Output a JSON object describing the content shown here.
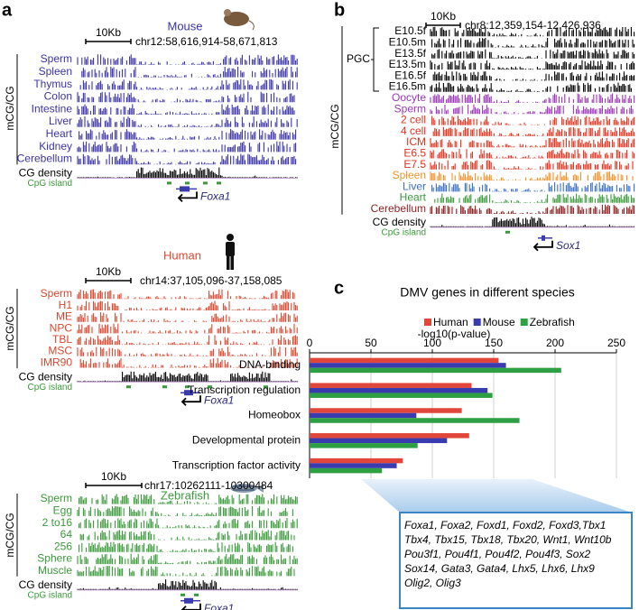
{
  "panel_a": {
    "letter": "a",
    "sections": [
      {
        "species": "Mouse",
        "scale": "10Kb",
        "locus": "chr12:58,616,914-58,671,813",
        "y_label": "mCG/CG",
        "color": "#3b33a6",
        "tracks": [
          "Sperm",
          "Spleen",
          "Thymus",
          "Colon",
          "Intestine",
          "Liver",
          "Heart",
          "Kidney",
          "Cerebellum"
        ],
        "density_label": "CG density",
        "cpg_label": "CpG island",
        "gene": "Foxa1"
      },
      {
        "species": "Human",
        "scale": "10Kb",
        "locus": "chr14:37,105,096-37,158,085",
        "y_label": "mCG/CG",
        "color": "#d9472f",
        "tracks": [
          "Sperm",
          "H1",
          "ME",
          "NPC",
          "TBL",
          "MSC",
          "IMR90"
        ],
        "density_label": "CG density",
        "cpg_label": "CpG island",
        "gene": "Foxa1"
      },
      {
        "species": "Zebrafish",
        "scale": "10Kb",
        "locus": "chr17:10262111-10300484",
        "y_label": "mCG/CG",
        "color": "#3a9a3a",
        "tracks": [
          "Sperm",
          "Egg",
          "2 to16",
          "64",
          "256",
          "Sphere",
          "Muscle"
        ],
        "density_label": "CG density",
        "cpg_label": "CpG island",
        "gene": "Foxa1"
      }
    ]
  },
  "panel_b": {
    "letter": "b",
    "scale": "10Kb",
    "locus": "chr8:12,359,154-12,426,936",
    "y_label": "mCG/CG",
    "group_label": "PGC",
    "tracks": [
      {
        "name": "E10.5f",
        "color": "#000000"
      },
      {
        "name": "E10.5m",
        "color": "#000000"
      },
      {
        "name": "E13.5f",
        "color": "#000000"
      },
      {
        "name": "E13.5m",
        "color": "#000000"
      },
      {
        "name": "E16.5f",
        "color": "#000000"
      },
      {
        "name": "E16.5m",
        "color": "#000000"
      },
      {
        "name": "Oocyte",
        "color": "#9b36b8"
      },
      {
        "name": "Sperm",
        "color": "#9b36b8"
      },
      {
        "name": "2 cell",
        "color": "#e0321e"
      },
      {
        "name": "4 cell",
        "color": "#e0321e"
      },
      {
        "name": "ICM",
        "color": "#e0321e"
      },
      {
        "name": "E6.5",
        "color": "#e0321e"
      },
      {
        "name": "E7.5",
        "color": "#e0321e"
      },
      {
        "name": "Spleen",
        "color": "#f0922a"
      },
      {
        "name": "Liver",
        "color": "#3a6fc4"
      },
      {
        "name": "Heart",
        "color": "#3a9a3a"
      },
      {
        "name": "Cerebellum",
        "color": "#8b1f1f"
      }
    ],
    "density_label": "CG density",
    "cpg_label": "CpG island",
    "gene": "Sox1"
  },
  "panel_c": {
    "letter": "c",
    "gene_list": [
      "Foxa1, Foxa2, Foxd1, Foxd2, Foxd3,Tbx1",
      "Tbx4, Tbx15, Tbx18, Tbx20, Wnt1, Wnt10b",
      "Pou3f1, Pou4f1, Pou4f2, Pou4f3, Sox2",
      "Sox14, Gata3, Gata4, Lhx5, Lhx6, Lhx9",
      "Olig2, Olig3"
    ]
  },
  "chart_data": {
    "type": "hbar",
    "title": "DMV genes in different species",
    "x_label": "-log10(p-value)",
    "categories": [
      "DNA-binding",
      "Transcription regulation",
      "Homeobox",
      "Developmental protein",
      "Transcription factor activity"
    ],
    "series": [
      {
        "name": "Human",
        "color": "#e0473a",
        "values": [
          154,
          132,
          124,
          130,
          76
        ]
      },
      {
        "name": "Mouse",
        "color": "#3b3bb0",
        "values": [
          160,
          145,
          87,
          112,
          71
        ]
      },
      {
        "name": "Zebrafish",
        "color": "#2ea043",
        "values": [
          205,
          149,
          171,
          88,
          59
        ]
      }
    ],
    "xlim": [
      0,
      250
    ],
    "xticks": [
      0,
      50,
      100,
      150,
      200,
      250
    ],
    "grid": true
  }
}
